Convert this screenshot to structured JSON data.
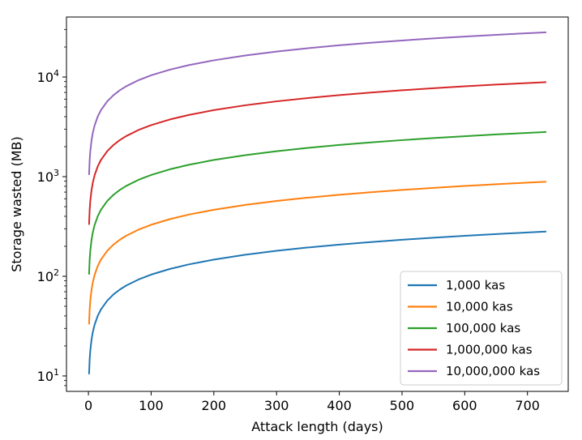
{
  "chart_data": {
    "type": "line",
    "title": "",
    "xlabel": "Attack length (days)",
    "ylabel": "Storage wasted (MB)",
    "xlim": [
      -35,
      765
    ],
    "ylim": [
      7,
      40000
    ],
    "yscale": "log",
    "grid": false,
    "legend_position": "lower-right",
    "x_ticks": [
      0,
      100,
      200,
      300,
      400,
      500,
      600,
      700
    ],
    "x_tick_labels": [
      "0",
      "100",
      "200",
      "300",
      "400",
      "500",
      "600",
      "700"
    ],
    "y_ticks": [
      {
        "value": 10,
        "base": "10",
        "exp": "1"
      },
      {
        "value": 100,
        "base": "10",
        "exp": "2"
      },
      {
        "value": 1000,
        "base": "10",
        "exp": "3"
      },
      {
        "value": 10000,
        "base": "10",
        "exp": "4"
      }
    ],
    "x": [
      1,
      2,
      3,
      5,
      7,
      10,
      15,
      20,
      30,
      40,
      50,
      60,
      80,
      100,
      130,
      160,
      200,
      250,
      300,
      350,
      400,
      450,
      500,
      550,
      600,
      650,
      700,
      730
    ],
    "series": [
      {
        "name": "1,000 kas",
        "color": "#1f77b4",
        "scale": 10.4
      },
      {
        "name": "10,000 kas",
        "color": "#ff7f0e",
        "scale": 32.9
      },
      {
        "name": "100,000 kas",
        "color": "#2ca02c",
        "scale": 104
      },
      {
        "name": "1,000,000 kas",
        "color": "#d62728",
        "scale": 329
      },
      {
        "name": "10,000,000 kas",
        "color": "#9467bd",
        "scale": 1040
      }
    ]
  }
}
